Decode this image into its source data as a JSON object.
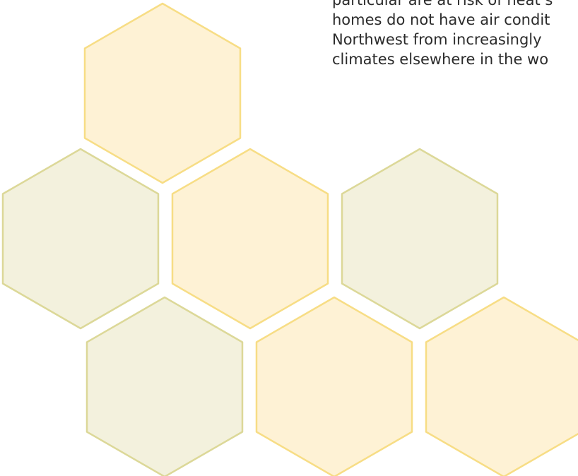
{
  "colors": {
    "cream_fill": "#fef2d5",
    "cream_stroke": "#f7dd85",
    "green_fill": "#f3f1dd",
    "green_stroke": "#dcd898",
    "text": "#2b2b2b"
  },
  "hexagons": [
    {
      "id": "hexagon-top",
      "tone": "cream"
    },
    {
      "id": "hexagon-middle-left",
      "tone": "green"
    },
    {
      "id": "hexagon-middle-center",
      "tone": "cream"
    },
    {
      "id": "hexagon-middle-right",
      "tone": "green"
    },
    {
      "id": "hexagon-bottom-left",
      "tone": "green"
    },
    {
      "id": "hexagon-bottom-center",
      "tone": "cream"
    },
    {
      "id": "hexagon-bottom-right",
      "tone": "cream"
    }
  ],
  "text": {
    "lines": [
      "particular are at risk of heat s",
      "homes do not have air condit",
      "Northwest from increasingly",
      "climates elsewhere in the wo"
    ]
  }
}
